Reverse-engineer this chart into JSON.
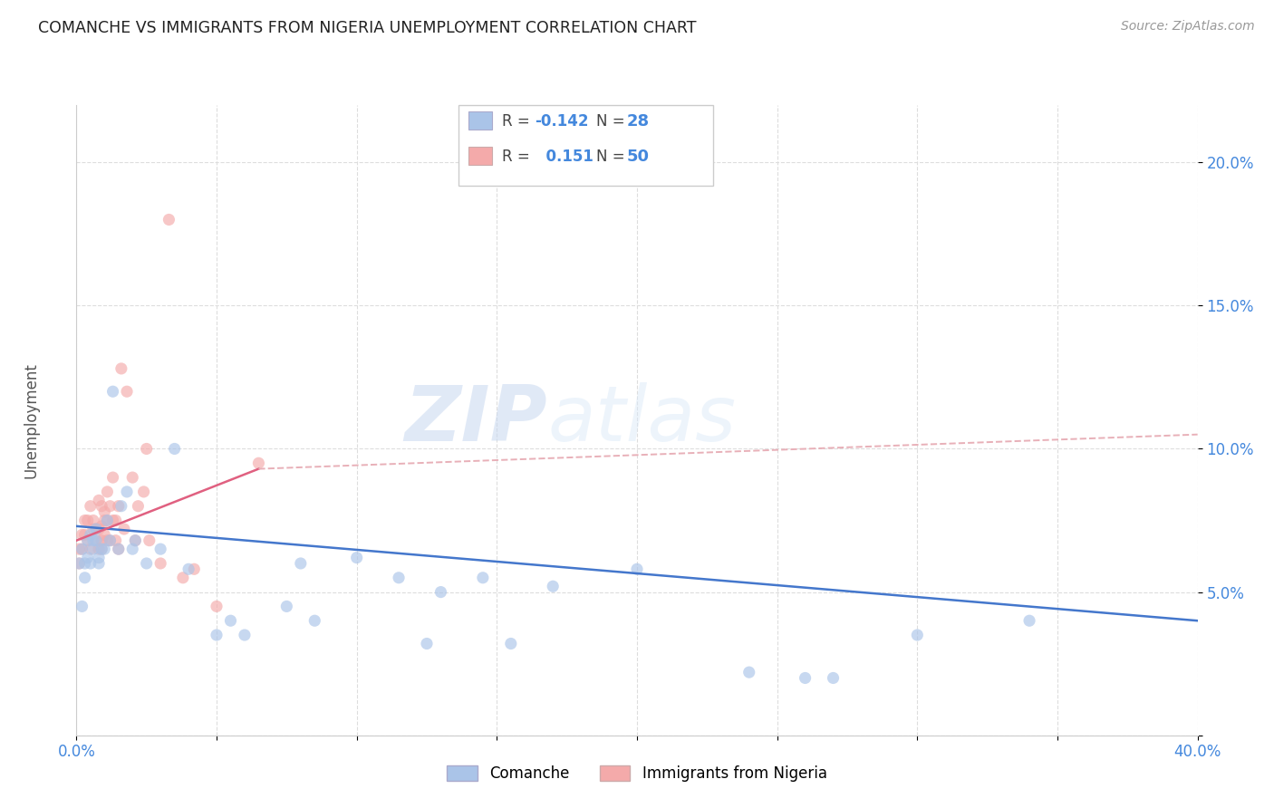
{
  "title": "COMANCHE VS IMMIGRANTS FROM NIGERIA UNEMPLOYMENT CORRELATION CHART",
  "source": "Source: ZipAtlas.com",
  "ylabel": "Unemployment",
  "xlim": [
    0.0,
    0.4
  ],
  "ylim": [
    0.0,
    0.22
  ],
  "xticks": [
    0.0,
    0.05,
    0.1,
    0.15,
    0.2,
    0.25,
    0.3,
    0.35,
    0.4
  ],
  "yticks": [
    0.0,
    0.05,
    0.1,
    0.15,
    0.2
  ],
  "ytick_labels": [
    "",
    "5.0%",
    "10.0%",
    "15.0%",
    "20.0%"
  ],
  "xtick_labels": [
    "0.0%",
    "",
    "",
    "",
    "",
    "",
    "",
    "",
    "40.0%"
  ],
  "background_color": "#ffffff",
  "grid_color": "#dddddd",
  "comanche_color": "#aac4e8",
  "nigeria_color": "#f4aaaa",
  "comanche_line_color": "#4477cc",
  "nigeria_line_color": "#e06080",
  "nigeria_line_dashed_color": "#e8b0b8",
  "legend_label_comanche": "Comanche",
  "legend_label_nigeria": "Immigrants from Nigeria",
  "comanche_x": [
    0.001,
    0.002,
    0.002,
    0.003,
    0.003,
    0.004,
    0.004,
    0.005,
    0.005,
    0.006,
    0.006,
    0.007,
    0.007,
    0.008,
    0.008,
    0.009,
    0.01,
    0.011,
    0.012,
    0.013,
    0.015,
    0.016,
    0.018,
    0.02,
    0.021,
    0.025,
    0.03,
    0.035,
    0.04,
    0.05,
    0.055,
    0.06,
    0.075,
    0.08,
    0.085,
    0.1,
    0.115,
    0.125,
    0.13,
    0.145,
    0.155,
    0.17,
    0.2,
    0.24,
    0.26,
    0.27,
    0.3,
    0.34
  ],
  "comanche_y": [
    0.06,
    0.045,
    0.065,
    0.06,
    0.055,
    0.062,
    0.068,
    0.06,
    0.07,
    0.065,
    0.068,
    0.068,
    0.072,
    0.062,
    0.06,
    0.065,
    0.065,
    0.075,
    0.068,
    0.12,
    0.065,
    0.08,
    0.085,
    0.065,
    0.068,
    0.06,
    0.065,
    0.1,
    0.058,
    0.035,
    0.04,
    0.035,
    0.045,
    0.06,
    0.04,
    0.062,
    0.055,
    0.032,
    0.05,
    0.055,
    0.032,
    0.052,
    0.058,
    0.022,
    0.02,
    0.02,
    0.035,
    0.04
  ],
  "nigeria_x": [
    0.001,
    0.001,
    0.002,
    0.002,
    0.003,
    0.003,
    0.004,
    0.004,
    0.005,
    0.005,
    0.006,
    0.006,
    0.007,
    0.007,
    0.008,
    0.008,
    0.008,
    0.009,
    0.009,
    0.009,
    0.009,
    0.01,
    0.01,
    0.01,
    0.011,
    0.011,
    0.011,
    0.012,
    0.012,
    0.013,
    0.013,
    0.014,
    0.014,
    0.015,
    0.015,
    0.016,
    0.017,
    0.018,
    0.02,
    0.021,
    0.022,
    0.024,
    0.025,
    0.026,
    0.03,
    0.033,
    0.038,
    0.042,
    0.05,
    0.065
  ],
  "nigeria_y": [
    0.06,
    0.065,
    0.065,
    0.07,
    0.07,
    0.075,
    0.068,
    0.075,
    0.065,
    0.08,
    0.072,
    0.075,
    0.068,
    0.072,
    0.065,
    0.072,
    0.082,
    0.065,
    0.068,
    0.073,
    0.08,
    0.07,
    0.078,
    0.075,
    0.068,
    0.075,
    0.085,
    0.068,
    0.08,
    0.075,
    0.09,
    0.068,
    0.075,
    0.065,
    0.08,
    0.128,
    0.072,
    0.12,
    0.09,
    0.068,
    0.08,
    0.085,
    0.1,
    0.068,
    0.06,
    0.18,
    0.055,
    0.058,
    0.045,
    0.095
  ],
  "watermark_zip": "ZIP",
  "watermark_atlas": "atlas",
  "marker_size": 90,
  "marker_alpha": 0.65,
  "comanche_trendline_start_y": 0.073,
  "comanche_trendline_end_y": 0.04,
  "nigeria_trendline_start_y": 0.068,
  "nigeria_trendline_solid_end_x": 0.065,
  "nigeria_trendline_solid_end_y": 0.093,
  "nigeria_trendline_dashed_end_y": 0.105
}
